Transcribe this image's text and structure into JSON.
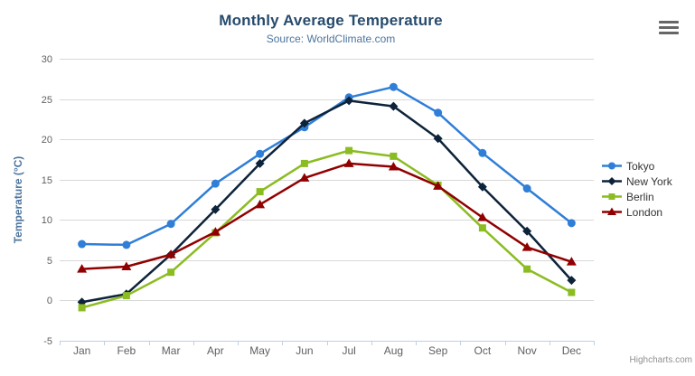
{
  "chart": {
    "credit": "Highcharts.com",
    "icons": {
      "menu": "hamburger-icon"
    }
  },
  "chart_data": {
    "type": "line",
    "title": "Monthly Average Temperature",
    "subtitle": "Source: WorldClimate.com",
    "categories": [
      "Jan",
      "Feb",
      "Mar",
      "Apr",
      "May",
      "Jun",
      "Jul",
      "Aug",
      "Sep",
      "Oct",
      "Nov",
      "Dec"
    ],
    "series": [
      {
        "name": "Tokyo",
        "color": "#2f7ed8",
        "marker": "circle",
        "values": [
          7.0,
          6.9,
          9.5,
          14.5,
          18.2,
          21.5,
          25.2,
          26.5,
          23.3,
          18.3,
          13.9,
          9.6
        ]
      },
      {
        "name": "New York",
        "color": "#0d233a",
        "marker": "diamond",
        "values": [
          -0.2,
          0.8,
          5.7,
          11.3,
          17.0,
          22.0,
          24.8,
          24.1,
          20.1,
          14.1,
          8.6,
          2.5
        ]
      },
      {
        "name": "Berlin",
        "color": "#8bbc21",
        "marker": "square",
        "values": [
          -0.9,
          0.6,
          3.5,
          8.4,
          13.5,
          17.0,
          18.6,
          17.9,
          14.3,
          9.0,
          3.9,
          1.0
        ]
      },
      {
        "name": "London",
        "color": "#910000",
        "marker": "triangle",
        "values": [
          3.9,
          4.2,
          5.7,
          8.5,
          11.9,
          15.2,
          17.0,
          16.6,
          14.2,
          10.3,
          6.6,
          4.8
        ]
      }
    ],
    "xlabel": "",
    "ylabel": "Temperature (°C)",
    "ylim": [
      -5,
      30
    ],
    "yticks": [
      -5,
      0,
      5,
      10,
      15,
      20,
      25,
      30
    ],
    "grid": true,
    "legend_position": "right-middle",
    "colors": {
      "title": "#274b6d",
      "subtitle": "#4d759e",
      "axis_title": "#4d759e",
      "tick_label": "#606060",
      "grid_line": "#d8d8d8",
      "axis_line": "#c0d0e0",
      "legend_text": "#333333",
      "credit": "#909090"
    }
  }
}
